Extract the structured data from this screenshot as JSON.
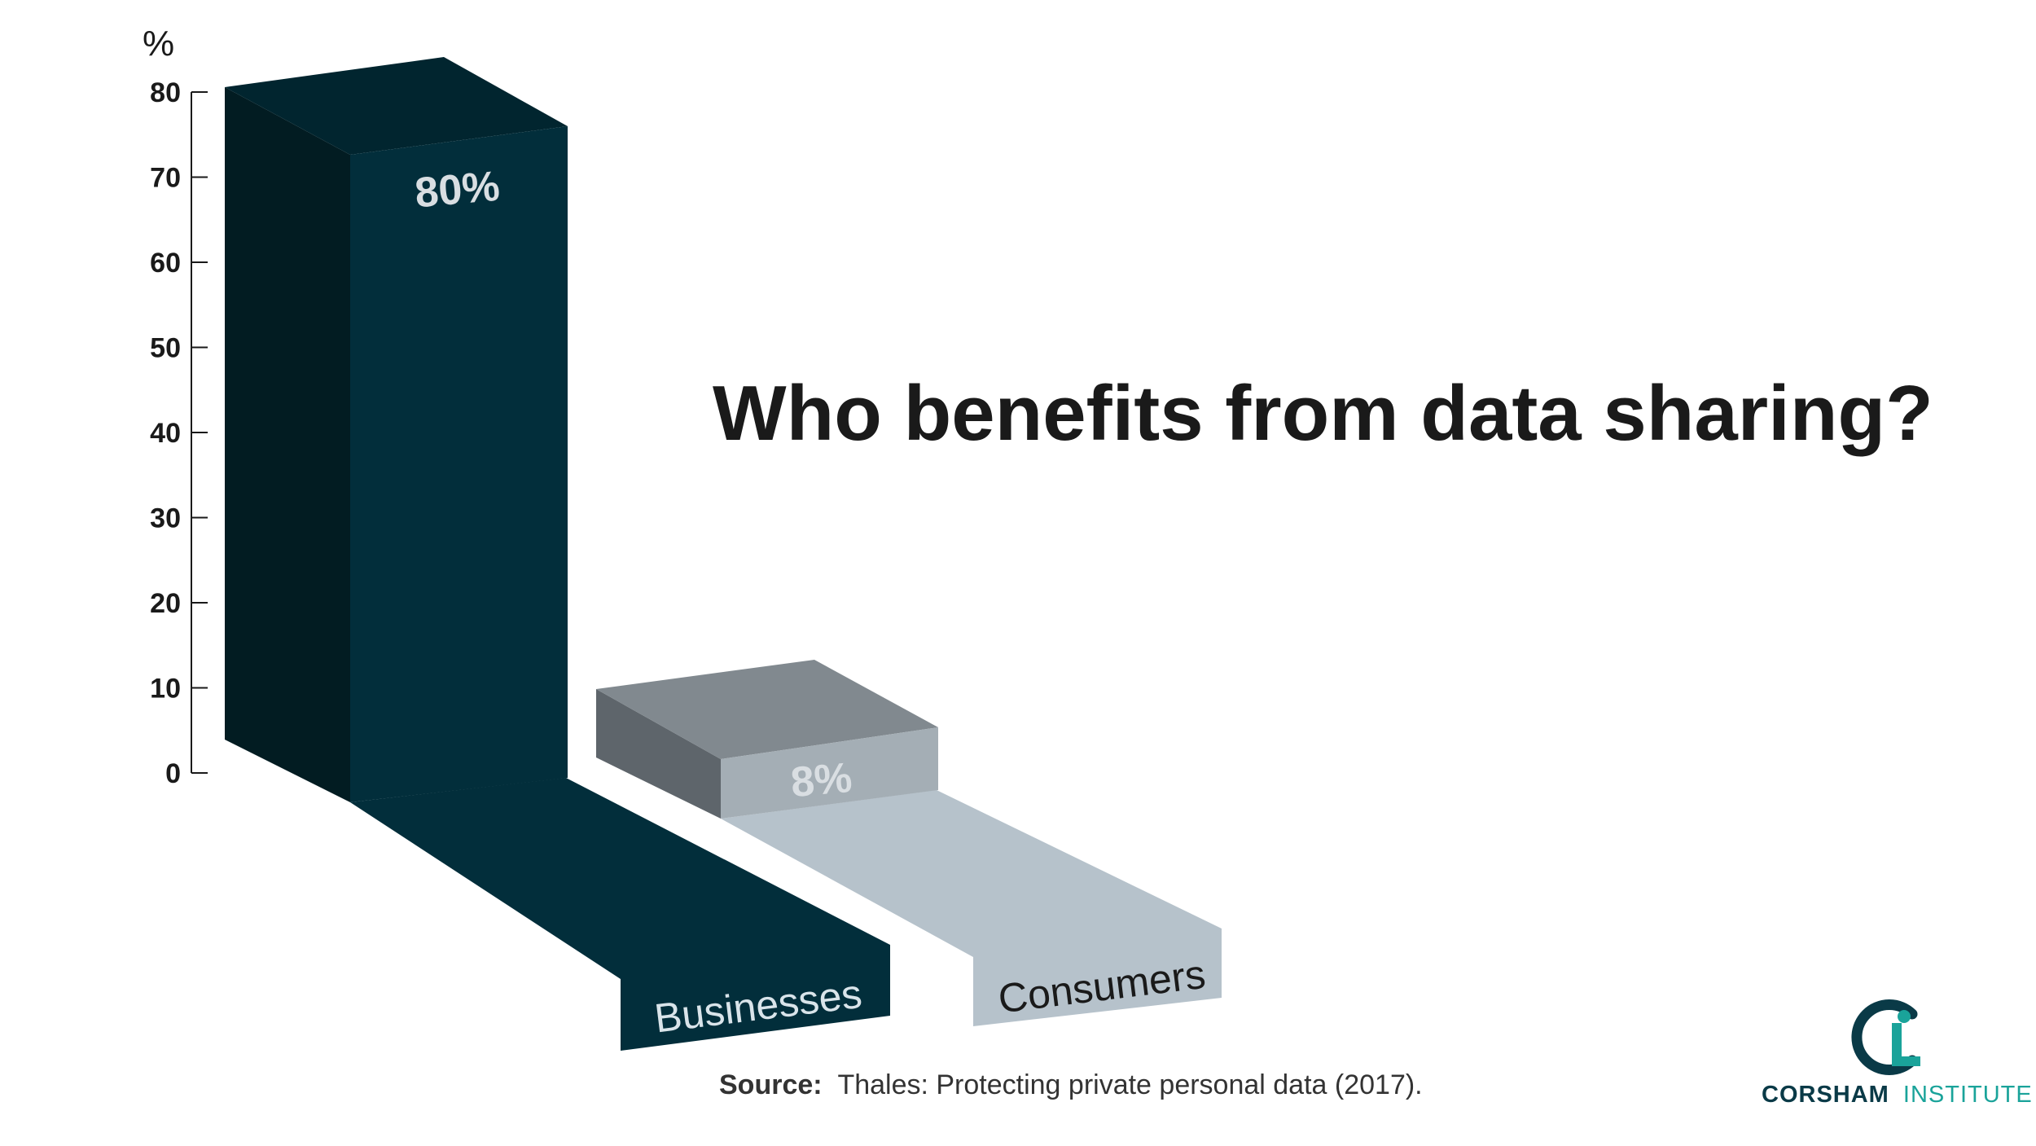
{
  "chart_data": {
    "type": "bar",
    "title": "Who benefits from data sharing?",
    "ylabel": "%",
    "ylim": [
      0,
      80
    ],
    "yticks": [
      0,
      10,
      20,
      30,
      40,
      50,
      60,
      70,
      80
    ],
    "categories": [
      "Businesses",
      "Consumers"
    ],
    "values": [
      80,
      8
    ],
    "value_labels": [
      "80%",
      "8%"
    ],
    "grid": false,
    "style": "3d",
    "colors": {
      "businesses_front": "#022e3b",
      "businesses_side": "#021c22",
      "businesses_top": "#01252f",
      "consumers_front": "#a4aeb5",
      "consumers_side": "#5e656b",
      "consumers_top": "#81898f",
      "consumers_ribbon": "#b6c2cb"
    }
  },
  "source": {
    "label": "Source:",
    "text": "Thales: Protecting private personal data (2017)."
  },
  "brand": {
    "bold": "CORSHAM",
    "light": "INSTITUTE",
    "color": "#0a3a47",
    "accent": "#1aa39a",
    "icon": "corsham-institute-logo"
  }
}
